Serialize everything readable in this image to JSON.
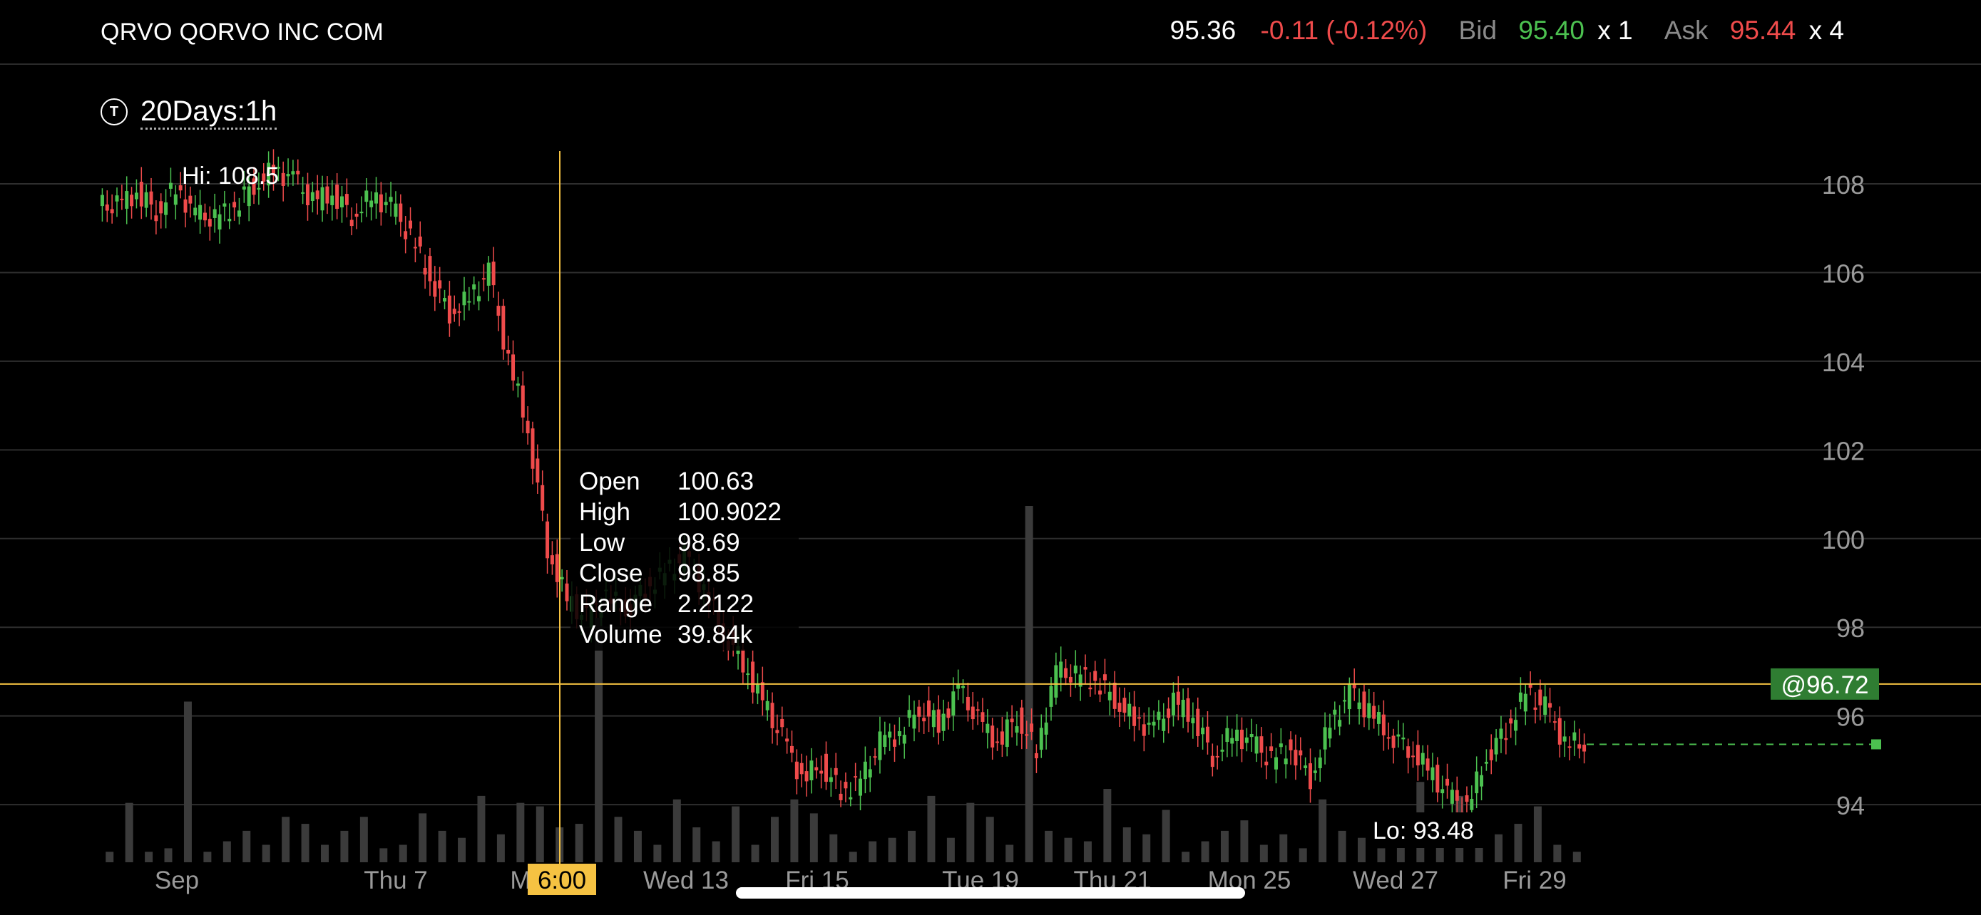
{
  "header": {
    "ticker": "QRVO QORVO INC COM",
    "last": "95.36",
    "change": "-0.11 (-0.12%)",
    "bid_label": "Bid",
    "bid": "95.40",
    "bid_size": "x 1",
    "ask_label": "Ask",
    "ask": "95.44",
    "ask_size": "x 4"
  },
  "period": {
    "icon": "T",
    "label": "20Days:1h"
  },
  "colors": {
    "up": "#4cc150",
    "down": "#ef4b4b",
    "crosshair": "#f5c242",
    "volume": "#3b3b3b",
    "grid": "#2e2e2e"
  },
  "chart_data": {
    "type": "candlestick",
    "interval": "1h",
    "ylim": [
      92.7,
      110.7
    ],
    "y_ticks": [
      108,
      106,
      104,
      102,
      100,
      98,
      96,
      94
    ],
    "x_labels": [
      "Sep",
      "Thu 7",
      "M",
      "Wed 13",
      "Fri 15",
      "Tue 19",
      "Thu 21",
      "Mon 25",
      "Wed 27",
      "Fri 29"
    ],
    "hi_label": "Hi: 108.5",
    "lo_label": "Lo: 93.48",
    "price_tag": "@96.72",
    "crosshair": {
      "time_label": "6:00",
      "price": 96.72
    },
    "last_price": 95.36,
    "tooltip": [
      {
        "key": "Open",
        "value": "100.63"
      },
      {
        "key": "High",
        "value": "100.9022"
      },
      {
        "key": "Low",
        "value": "98.69"
      },
      {
        "key": "Close",
        "value": "98.85"
      },
      {
        "key": "Range",
        "value": "2.2122"
      },
      {
        "key": "Volume",
        "value": "39.84k"
      }
    ],
    "close_path": [
      107.5,
      107.8,
      107.4,
      107.9,
      107.3,
      107.2,
      107.5,
      108.0,
      108.3,
      108.1,
      107.6,
      107.8,
      107.3,
      107.7,
      107.5,
      106.8,
      105.9,
      105.1,
      105.4,
      106.0,
      104.0,
      102.5,
      99.8,
      98.6,
      98.2,
      98.7,
      98.4,
      98.9,
      99.2,
      99.6,
      98.85,
      97.9,
      97.2,
      96.3,
      95.5,
      94.6,
      94.9,
      94.3,
      94.5,
      95.4,
      95.6,
      96.2,
      95.8,
      96.6,
      95.9,
      95.4,
      96.0,
      95.2,
      97.0,
      96.9,
      96.8,
      96.4,
      95.9,
      95.7,
      96.3,
      96.0,
      95.1,
      95.6,
      95.4,
      95.0,
      95.3,
      94.6,
      95.8,
      96.5,
      96.1,
      95.6,
      95.3,
      94.8,
      94.2,
      93.9,
      95.1,
      95.7,
      96.5,
      96.2,
      95.4,
      95.36
    ],
    "volume": [
      0.3,
      1.7,
      0.3,
      0.4,
      4.6,
      0.3,
      0.6,
      0.9,
      0.5,
      1.3,
      1.1,
      0.5,
      0.9,
      1.3,
      0.4,
      0.5,
      1.4,
      0.9,
      0.7,
      1.9,
      0.8,
      1.7,
      1.6,
      1.0,
      1.1,
      7.0,
      1.3,
      0.9,
      0.5,
      1.8,
      1.0,
      0.6,
      1.6,
      0.5,
      1.3,
      1.8,
      1.4,
      0.8,
      0.3,
      0.6,
      0.7,
      0.9,
      1.9,
      0.7,
      1.7,
      1.3,
      0.5,
      10.2,
      0.9,
      0.7,
      0.6,
      2.1,
      1.0,
      0.8,
      1.5,
      0.3,
      0.6,
      0.9,
      1.2,
      0.5,
      0.8,
      0.4,
      1.8,
      0.9,
      0.7,
      0.4,
      1.2,
      2.3,
      1.1,
      1.9,
      0.6,
      0.8,
      1.1,
      1.6,
      0.5,
      0.3
    ]
  }
}
